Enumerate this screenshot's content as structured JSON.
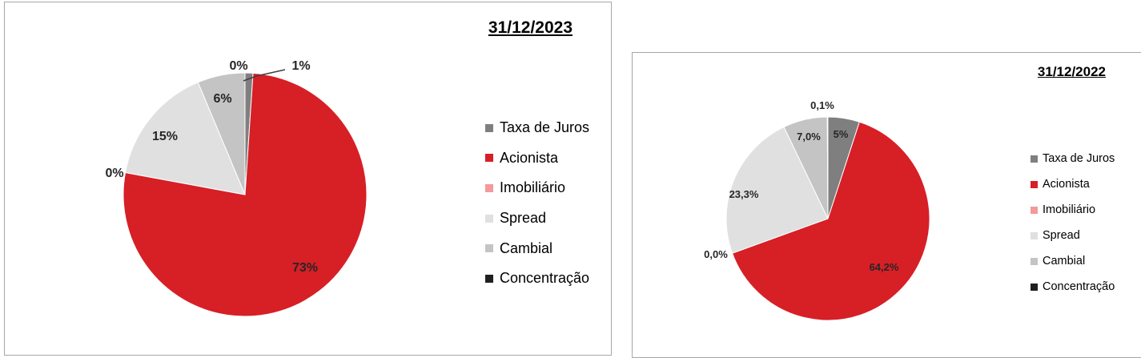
{
  "chart_data": [
    {
      "type": "pie",
      "title": "31/12/2023",
      "legend_position": "right",
      "categories": [
        "Taxa de Juros",
        "Acionista",
        "Imobiliário",
        "Spread",
        "Cambial",
        "Concentração"
      ],
      "values": [
        1,
        73,
        0,
        15,
        6,
        0
      ],
      "data_labels": [
        "1%",
        "73%",
        "0%",
        "15%",
        "6%",
        "0%"
      ],
      "colors": [
        "#7f7f7f",
        "#d71f26",
        "#f4999c",
        "#e0e0e0",
        "#c4c4c4",
        "#1f1f1f"
      ]
    },
    {
      "type": "pie",
      "title": "31/12/2022",
      "legend_position": "right",
      "categories": [
        "Taxa de Juros",
        "Acionista",
        "Imobiliário",
        "Spread",
        "Cambial",
        "Concentração"
      ],
      "values": [
        5,
        64.2,
        0.0,
        23.3,
        7.0,
        0.1
      ],
      "data_labels": [
        "5%",
        "64,2%",
        "0,0%",
        "23,3%",
        "7,0%",
        "0,1%"
      ],
      "colors": [
        "#7f7f7f",
        "#d71f26",
        "#f4999c",
        "#e0e0e0",
        "#c4c4c4",
        "#1f1f1f"
      ]
    }
  ]
}
